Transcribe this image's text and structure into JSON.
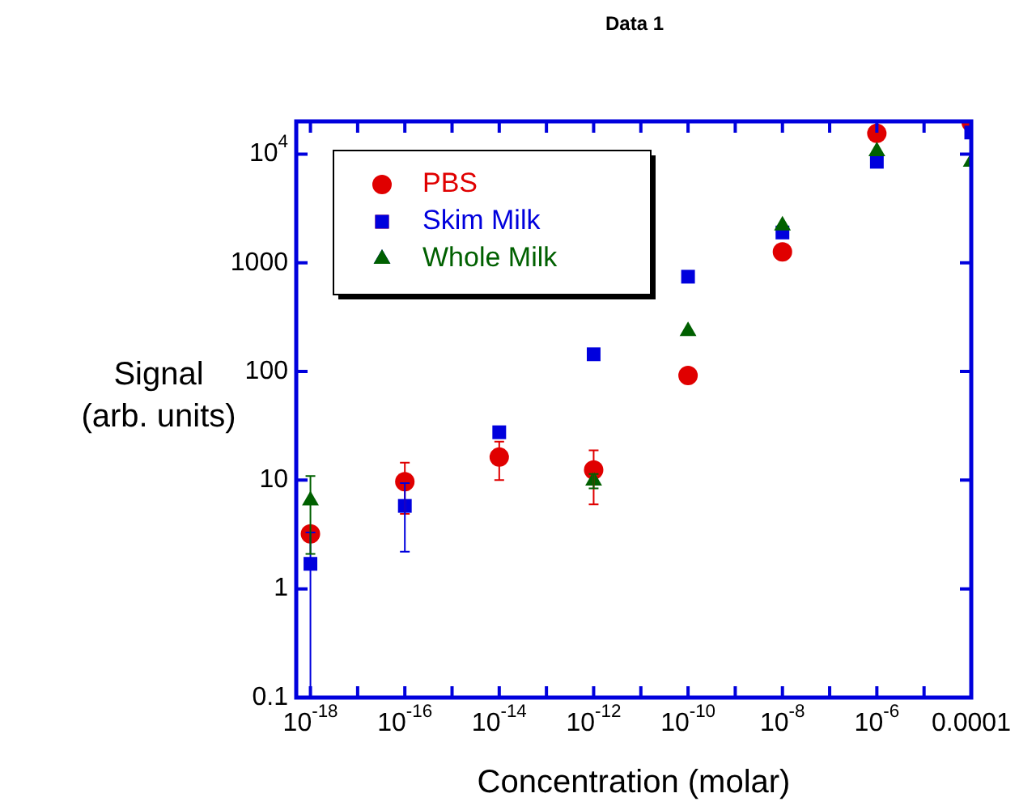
{
  "chart_data": {
    "type": "scatter",
    "title": "Data 1",
    "xlabel": "Concentration (molar)",
    "ylabel": "Signal\n(arb. units)",
    "x": [
      1e-18,
      1e-16,
      1e-14,
      1e-12,
      1e-10,
      1e-08,
      1e-06,
      0.0001
    ],
    "series": [
      {
        "name": "PBS",
        "color": "#e00000",
        "marker": "circle",
        "values": [
          3.2,
          9.7,
          16.3,
          12.4,
          92,
          1260,
          15500,
          19500
        ],
        "errors": [
          null,
          4.8,
          6.3,
          6.4,
          null,
          null,
          null,
          null
        ]
      },
      {
        "name": "Skim Milk",
        "color": "#0000dd",
        "marker": "square",
        "values": [
          1.7,
          5.8,
          27.6,
          144,
          745,
          1900,
          8500,
          15800
        ],
        "errors": [
          1.6,
          3.6,
          null,
          null,
          null,
          null,
          null,
          null
        ]
      },
      {
        "name": "Whole Milk",
        "color": "#006000",
        "marker": "triangle",
        "values": [
          6.5,
          null,
          null,
          9.9,
          235,
          2200,
          10600,
          8500
        ],
        "errors": [
          4.4,
          null,
          null,
          1.5,
          null,
          null,
          null,
          null
        ]
      }
    ],
    "log": "xy",
    "xlim": [
      5e-19,
      0.0001
    ],
    "ylim": [
      0.1,
      20000
    ],
    "xticks": [
      {
        "value": 1e-18,
        "label": "10$^{-18}$"
      },
      {
        "value": 1e-17,
        "label": null
      },
      {
        "value": 1e-16,
        "label": "10$^{-16}$"
      },
      {
        "value": 1e-15,
        "label": null
      },
      {
        "value": 1e-14,
        "label": "10$^{-14}$"
      },
      {
        "value": 1e-13,
        "label": null
      },
      {
        "value": 1e-12,
        "label": "10$^{-12}$"
      },
      {
        "value": 1e-11,
        "label": null
      },
      {
        "value": 1e-10,
        "label": "10$^{-10}$"
      },
      {
        "value": 1e-09,
        "label": null
      },
      {
        "value": 1e-08,
        "label": "10$^{-8}$"
      },
      {
        "value": 1e-07,
        "label": null
      },
      {
        "value": 1e-06,
        "label": "10$^{-6}$"
      },
      {
        "value": 1e-05,
        "label": null
      },
      {
        "value": 0.0001,
        "label": "0.0001"
      }
    ],
    "yticks": [
      0.1,
      1,
      10,
      100,
      1000,
      {
        "value": 10000,
        "label": "10$^{4}$"
      }
    ],
    "grid": false,
    "legend": "top left"
  }
}
